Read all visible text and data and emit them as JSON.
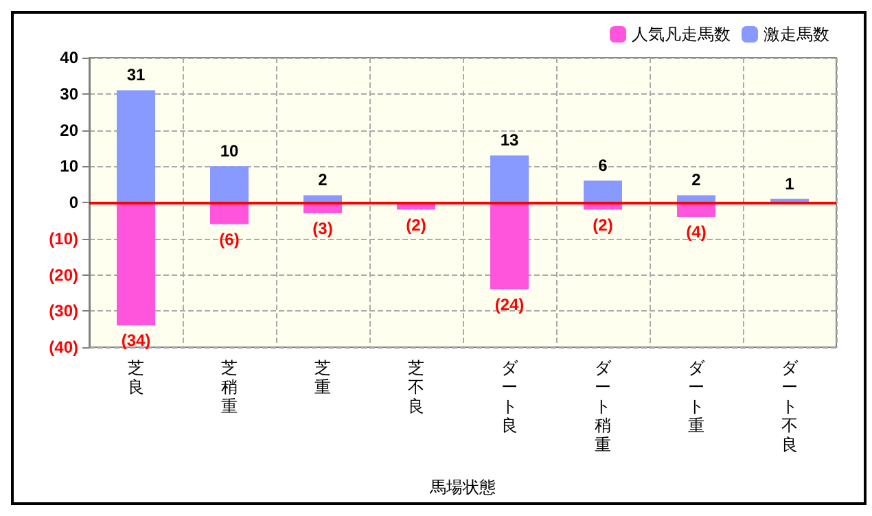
{
  "chart_data": {
    "type": "bar",
    "stacked": true,
    "xlabel": "馬場状態",
    "categories": [
      "芝良",
      "芝稍重",
      "芝重",
      "芝不良",
      "ダート良",
      "ダート稍重",
      "ダート重",
      "ダート不良"
    ],
    "series": [
      {
        "name": "人気凡走馬数",
        "color": "#ff55dd",
        "values": [
          -34,
          -6,
          -3,
          -2,
          -24,
          -2,
          -4,
          null
        ],
        "value_labels": [
          "(34)",
          "(6)",
          "(3)",
          "(2)",
          "(24)",
          "(2)",
          "(4)",
          null
        ]
      },
      {
        "name": "激走馬数",
        "color": "#8899ff",
        "values": [
          31,
          10,
          2,
          null,
          13,
          6,
          2,
          1
        ],
        "value_labels": [
          "31",
          "10",
          "2",
          null,
          "13",
          "6",
          "2",
          "1"
        ]
      }
    ],
    "ylim": [
      -40,
      40
    ],
    "yticks": [
      {
        "value": -40,
        "label": "(40)"
      },
      {
        "value": -30,
        "label": "(30)"
      },
      {
        "value": -20,
        "label": "(20)"
      },
      {
        "value": -10,
        "label": "(10)"
      },
      0,
      10,
      20,
      30,
      40
    ],
    "ref_lines": [
      {
        "axis": "y",
        "value": 0,
        "color": "#ff0000"
      }
    ],
    "grid": true,
    "legend": "top right"
  }
}
